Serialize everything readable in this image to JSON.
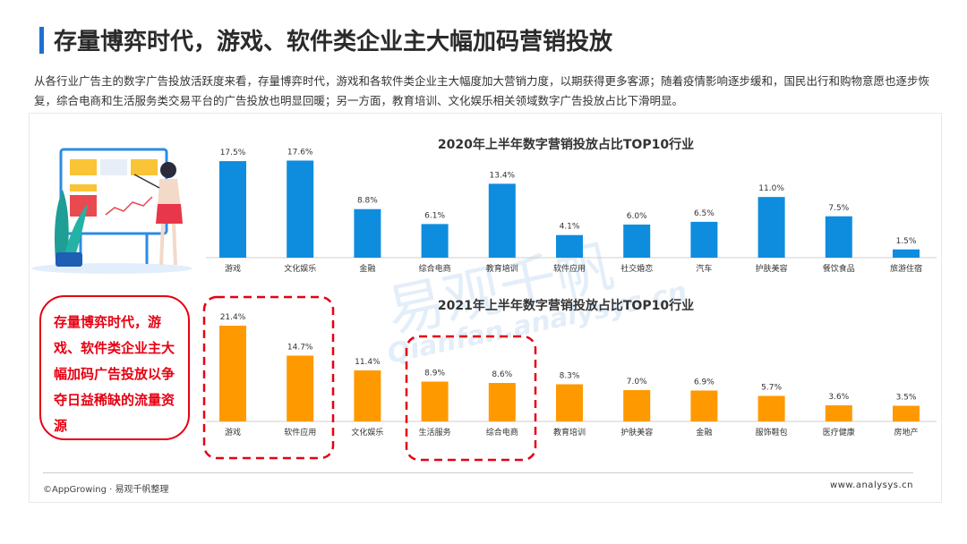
{
  "page": {
    "title": "存量博弈时代，游戏、软件类企业主大幅加码营销投放",
    "description": "从各行业广告主的数字广告投放活跃度来看，存量博弈时代，游戏和各软件类企业主大幅度加大营销力度，以期获得更多客源；随着疫情影响逐步缓和，国民出行和购物意愿也逐步恢复，综合电商和生活服务类交易平台的广告投放也明显回暖；另一方面，教育培训、文化娱乐相关领域数字广告投放占比下滑明显。",
    "callout": "存量博弈时代，游戏、软件类企业主大幅加码广告投放以争夺日益稀缺的流量资源",
    "source": "©AppGrowing · 易观千帆整理",
    "website": "www.analysys.cn",
    "watermark_cn": "易观千帆",
    "watermark_en": "Qianfan.analysys.cn"
  },
  "colors": {
    "bar2020": "#0e8ddf",
    "bar2021": "#ff9900",
    "accent": "#e60012",
    "title_bar": "#1f6fd1"
  },
  "chart_data": [
    {
      "type": "bar",
      "title": "2020年上半年数字营销投放占比TOP10行业",
      "categories": [
        "游戏",
        "文化娱乐",
        "金融",
        "综合电商",
        "教育培训",
        "软件应用",
        "社交婚恋",
        "汽车",
        "护肤美容",
        "餐饮食品",
        "旅游住宿"
      ],
      "values": [
        17.5,
        17.6,
        8.8,
        6.1,
        13.4,
        4.1,
        6.0,
        6.5,
        11.0,
        7.5,
        1.5
      ],
      "labels": [
        "17.5%",
        "17.6%",
        "8.8%",
        "6.1%",
        "13.4%",
        "4.1%",
        "6.0%",
        "6.5%",
        "11.0%",
        "7.5%",
        "1.5%"
      ],
      "unit": "%",
      "ylim": [
        0,
        18
      ],
      "grid": false
    },
    {
      "type": "bar",
      "title": "2021年上半年数字营销投放占比TOP10行业",
      "categories": [
        "游戏",
        "软件应用",
        "文化娱乐",
        "生活服务",
        "综合电商",
        "教育培训",
        "护肤美容",
        "金融",
        "服饰鞋包",
        "医疗健康",
        "房地产"
      ],
      "values": [
        21.4,
        14.7,
        11.4,
        8.9,
        8.6,
        8.3,
        7.0,
        6.9,
        5.7,
        3.6,
        3.5
      ],
      "labels": [
        "21.4%",
        "14.7%",
        "11.4%",
        "8.9%",
        "8.6%",
        "8.3%",
        "7.0%",
        "6.9%",
        "5.7%",
        "3.6%",
        "3.5%"
      ],
      "unit": "%",
      "ylim": [
        0,
        21.4
      ],
      "grid": false
    }
  ]
}
